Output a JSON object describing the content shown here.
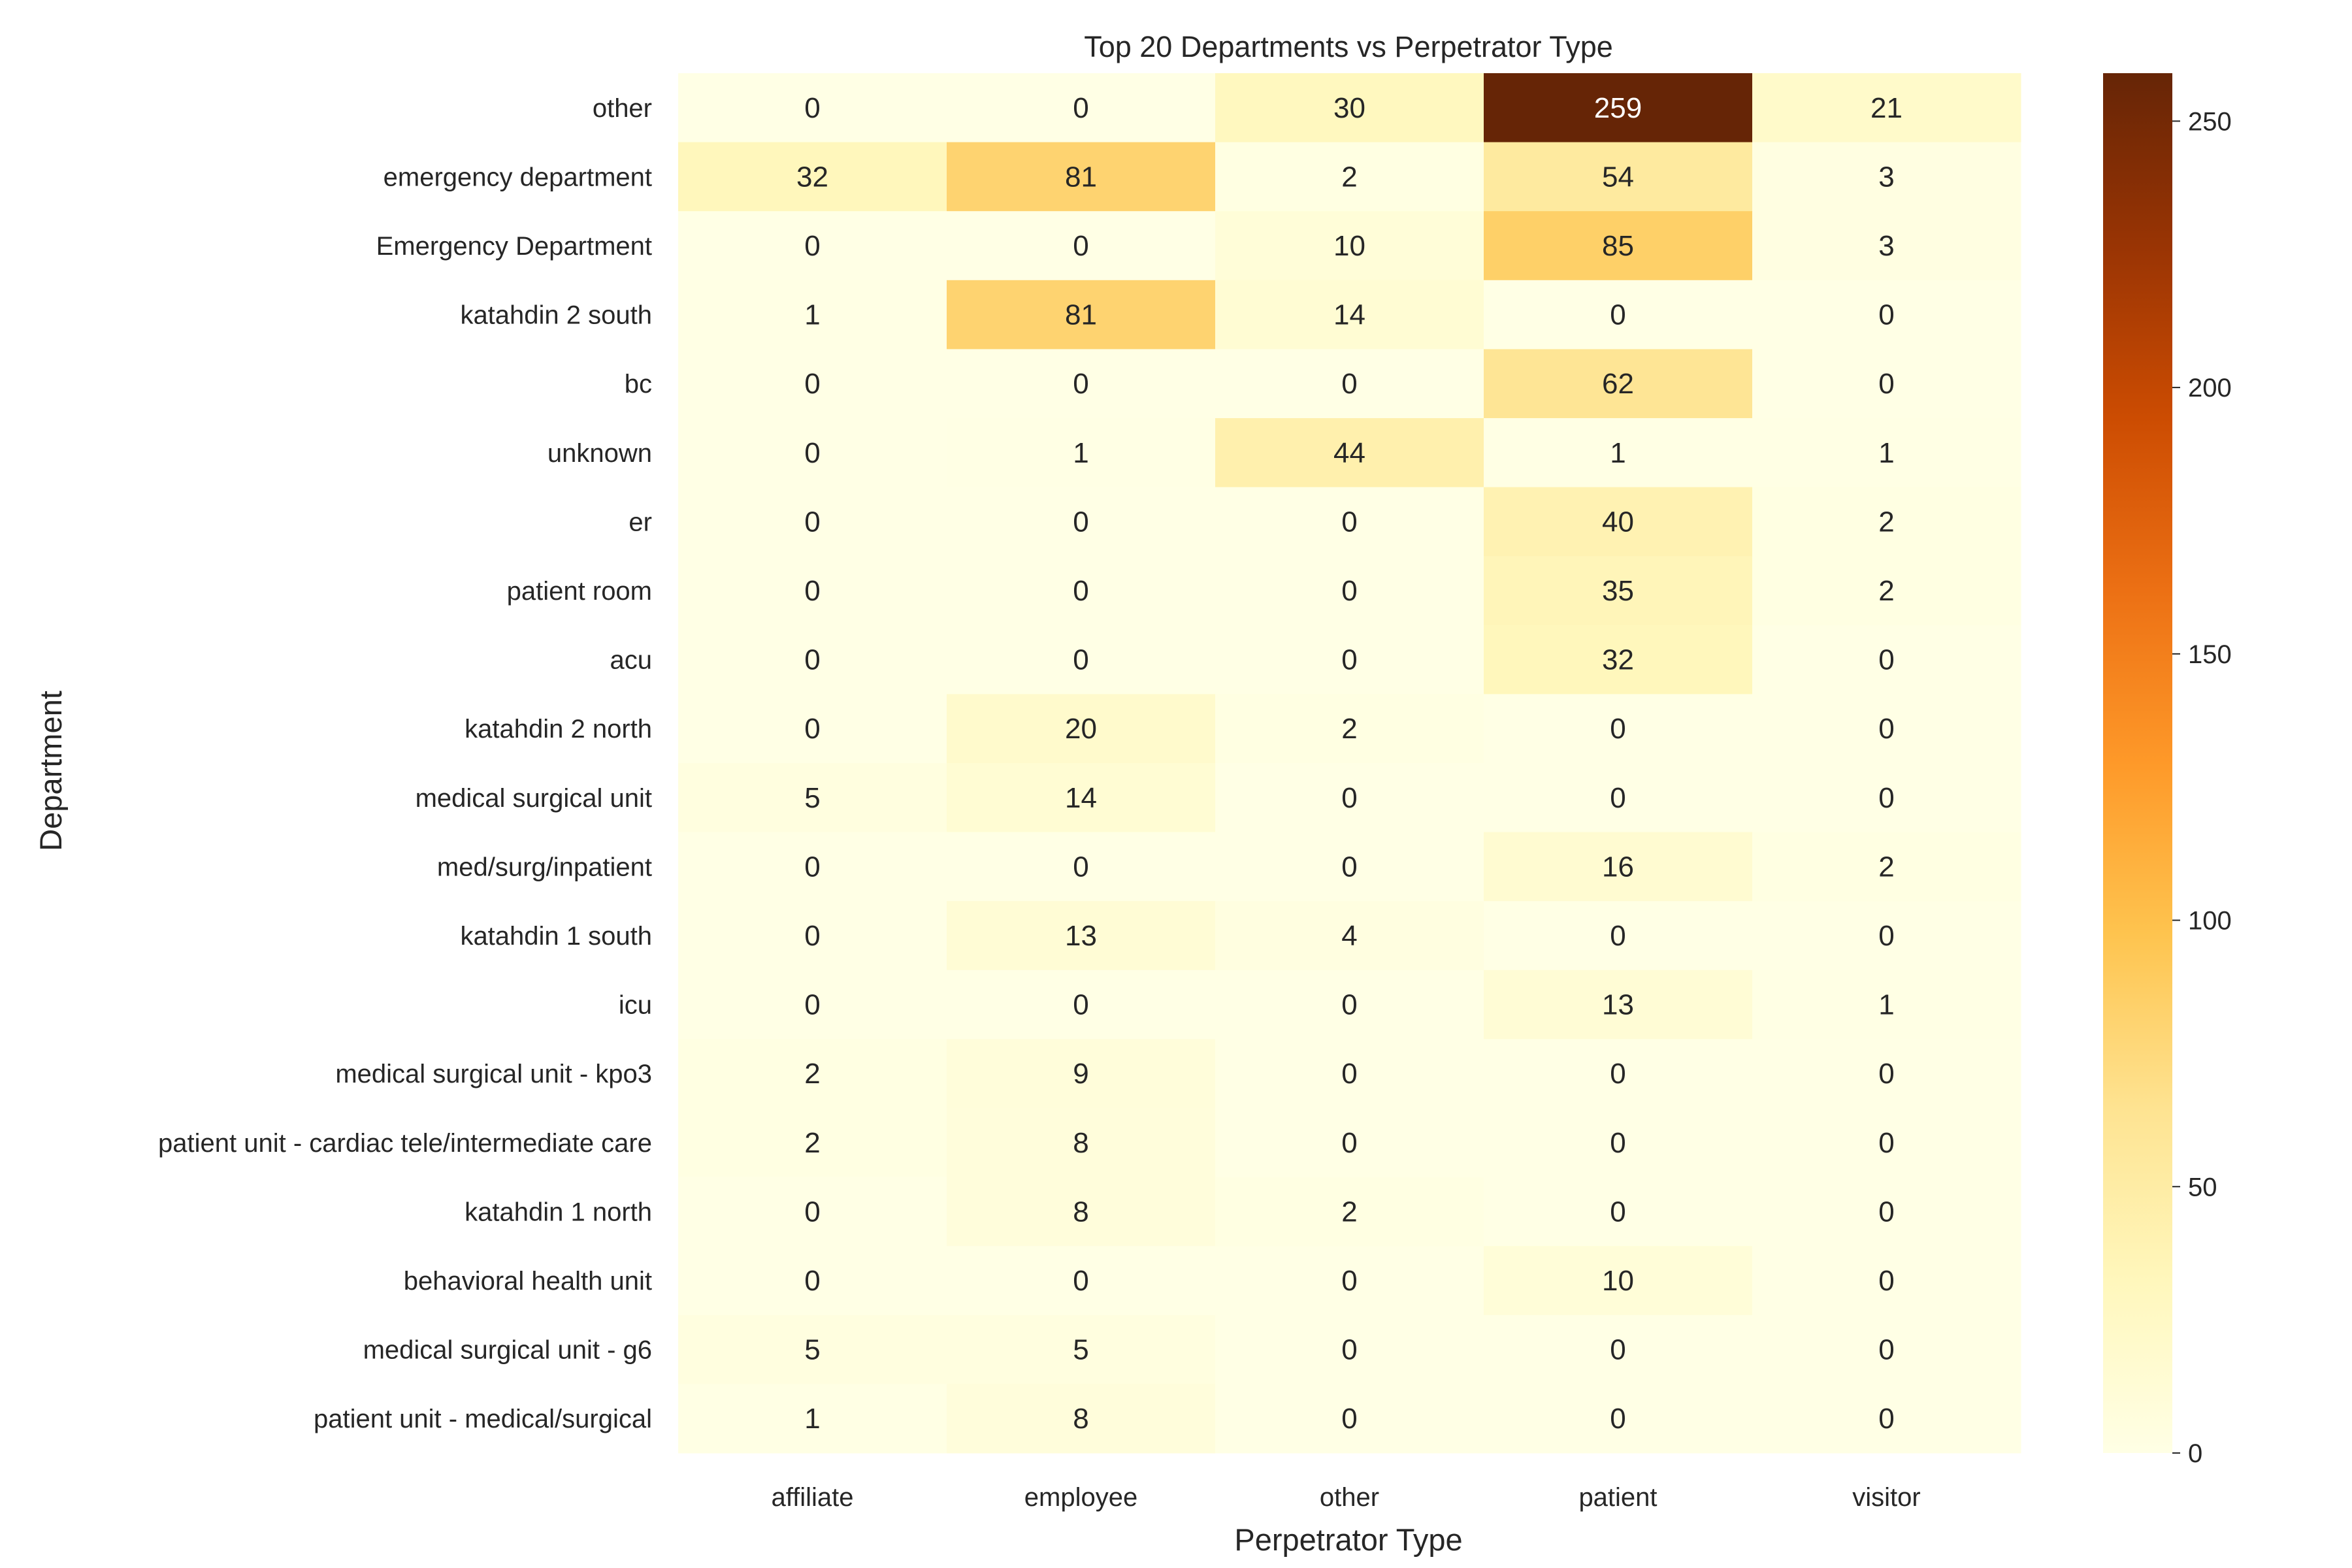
{
  "chart_data": {
    "type": "heatmap",
    "title": "Top 20 Departments vs Perpetrator Type",
    "xlabel": "Perpetrator Type",
    "ylabel": "Department",
    "columns": [
      "affiliate",
      "employee",
      "other",
      "patient",
      "visitor"
    ],
    "rows": [
      "other",
      "emergency department",
      "Emergency Department",
      "katahdin 2 south",
      "bc",
      "unknown",
      "er",
      "patient room",
      "acu",
      "katahdin 2 north",
      "medical surgical unit",
      "med/surg/inpatient",
      "katahdin 1 south",
      "icu",
      "medical surgical unit - kpo3",
      "patient unit - cardiac tele/intermediate care",
      "katahdin 1 north",
      "behavioral health unit",
      "medical surgical unit - g6",
      "patient unit - medical/surgical"
    ],
    "values": [
      [
        0,
        0,
        30,
        259,
        21
      ],
      [
        32,
        81,
        2,
        54,
        3
      ],
      [
        0,
        0,
        10,
        85,
        3
      ],
      [
        1,
        81,
        14,
        0,
        0
      ],
      [
        0,
        0,
        0,
        62,
        0
      ],
      [
        0,
        1,
        44,
        1,
        1
      ],
      [
        0,
        0,
        0,
        40,
        2
      ],
      [
        0,
        0,
        0,
        35,
        2
      ],
      [
        0,
        0,
        0,
        32,
        0
      ],
      [
        0,
        20,
        2,
        0,
        0
      ],
      [
        5,
        14,
        0,
        0,
        0
      ],
      [
        0,
        0,
        0,
        16,
        2
      ],
      [
        0,
        13,
        4,
        0,
        0
      ],
      [
        0,
        0,
        0,
        13,
        1
      ],
      [
        2,
        9,
        0,
        0,
        0
      ],
      [
        2,
        8,
        0,
        0,
        0
      ],
      [
        0,
        8,
        2,
        0,
        0
      ],
      [
        0,
        0,
        0,
        10,
        0
      ],
      [
        5,
        5,
        0,
        0,
        0
      ],
      [
        1,
        8,
        0,
        0,
        0
      ]
    ],
    "colorbar": {
      "min": 0,
      "max": 259,
      "ticks": [
        0,
        50,
        100,
        150,
        200,
        250
      ],
      "colormap": "YlOrBr",
      "colors": [
        "#ffffe5",
        "#fff7bc",
        "#fee391",
        "#fec44f",
        "#fe9929",
        "#ec7014",
        "#cc4c02",
        "#993404",
        "#662506"
      ]
    },
    "grid": false
  }
}
